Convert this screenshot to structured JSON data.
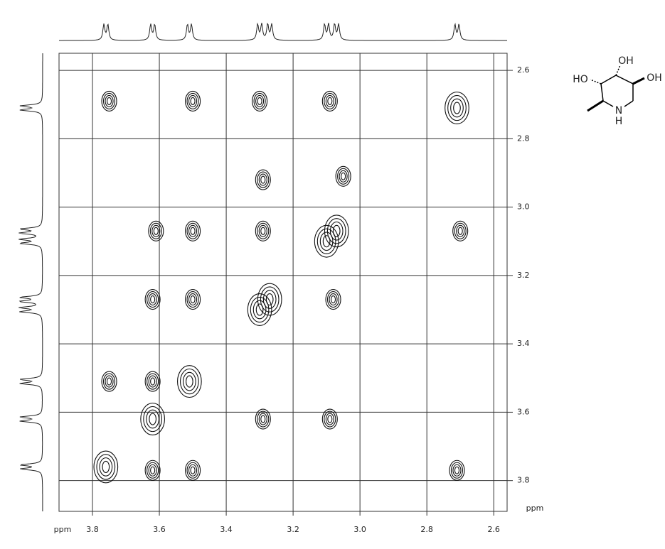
{
  "chart_data": {
    "type": "scatter",
    "x": [
      3.76,
      3.62,
      3.51,
      3.3,
      3.27,
      3.1,
      3.07,
      2.71,
      3.75,
      3.5,
      3.3,
      3.09,
      3.29,
      3.05,
      3.61,
      3.5,
      3.29,
      2.7,
      3.62,
      3.5,
      3.08,
      3.75,
      3.62,
      3.29,
      3.09,
      3.62,
      3.5,
      2.71
    ],
    "y": [
      3.76,
      3.62,
      3.51,
      3.3,
      3.27,
      3.1,
      3.07,
      2.71,
      2.69,
      2.69,
      2.69,
      2.69,
      2.92,
      2.91,
      3.07,
      3.07,
      3.07,
      3.07,
      3.27,
      3.27,
      3.27,
      3.51,
      3.51,
      3.62,
      3.62,
      3.77,
      3.77,
      3.77
    ],
    "xlim": [
      3.9,
      2.56
    ],
    "ylim": [
      2.55,
      3.89
    ],
    "xticks": [
      3.8,
      3.6,
      3.4,
      3.2,
      {
        "value": 3,
        "label": "3.0"
      },
      2.8,
      2.6
    ],
    "yticks": [
      2.6,
      2.8,
      {
        "value": 3,
        "label": "3.0"
      },
      3.2,
      3.4,
      3.6,
      3.8
    ],
    "xlabel": "ppm",
    "ylabel": "ppm",
    "grid": true,
    "color": "#111111",
    "structure_labels": [
      "OH",
      "HO",
      "OH",
      "N",
      "H"
    ]
  }
}
